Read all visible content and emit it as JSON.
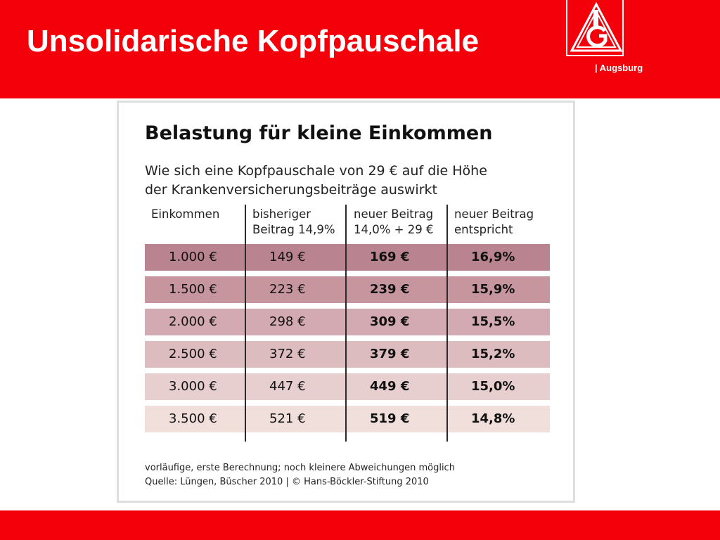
{
  "header": {
    "title": "Unsolidarische Kopfpauschale",
    "logo_icon": "ig-metall-logo-icon",
    "subbrand": "| Augsburg"
  },
  "colors": {
    "brand_red": "#f3000b",
    "row_shades": [
      "#b9838f",
      "#c6959e",
      "#d3aab1",
      "#dcbcbf",
      "#e6cfce",
      "#f0dfdb"
    ]
  },
  "chart_data": {
    "type": "table",
    "title": "Belastung für kleine Einkommen",
    "subtitle_lines": [
      "Wie sich eine Kopfpauschale von 29 € auf die Höhe",
      "der Krankenversicherungsbeiträge auswirkt"
    ],
    "columns": [
      {
        "lines": [
          "Einkommen"
        ]
      },
      {
        "lines": [
          "bisheriger",
          "Beitrag 14,9%"
        ]
      },
      {
        "lines": [
          "neuer Beitrag",
          "14,0% + 29 €"
        ]
      },
      {
        "lines": [
          "neuer Beitrag",
          "entspricht"
        ]
      }
    ],
    "rows": [
      {
        "income": "1.000 €",
        "old": "149 €",
        "new": "169 €",
        "pct": "16,9%"
      },
      {
        "income": "1.500 €",
        "old": "223 €",
        "new": "239 €",
        "pct": "15,9%"
      },
      {
        "income": "2.000 €",
        "old": "298 €",
        "new": "309 €",
        "pct": "15,5%"
      },
      {
        "income": "2.500 €",
        "old": "372 €",
        "new": "379 €",
        "pct": "15,2%"
      },
      {
        "income": "3.000 €",
        "old": "447 €",
        "new": "449 €",
        "pct": "15,0%"
      },
      {
        "income": "3.500 €",
        "old": "521 €",
        "new": "519 €",
        "pct": "14,8%"
      }
    ],
    "notes": [
      "vorläufige, erste Berechnung; noch kleinere Abweichungen möglich",
      "Quelle: Lüngen, Büscher 2010 | © Hans-Böckler-Stiftung 2010"
    ]
  }
}
